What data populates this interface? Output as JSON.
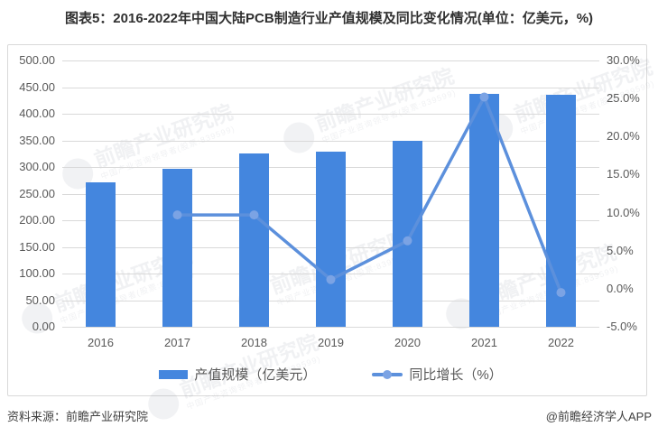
{
  "title": "图表5：2016-2022年中国大陆PCB制造行业产值规模及同比变化情况(单位：亿美元，%)",
  "chart_data": {
    "type": "bar+line",
    "categories": [
      "2016",
      "2017",
      "2018",
      "2019",
      "2020",
      "2021",
      "2022"
    ],
    "series": [
      {
        "name": "产值规模（亿美元）",
        "type": "bar",
        "axis": "left",
        "values": [
          271,
          297,
          326,
          329,
          350,
          437,
          435
        ]
      },
      {
        "name": "同比增长（%）",
        "type": "line",
        "axis": "right",
        "values": [
          null,
          9.7,
          9.7,
          1.2,
          6.3,
          25.2,
          -0.5
        ]
      }
    ],
    "left_axis": {
      "min": 0,
      "max": 500,
      "step": 50,
      "labels": [
        "0.00",
        "50.00",
        "100.00",
        "150.00",
        "200.00",
        "250.00",
        "300.00",
        "350.00",
        "400.00",
        "450.00",
        "500.00"
      ]
    },
    "right_axis": {
      "min": -5,
      "max": 30,
      "step": 5,
      "labels": [
        "-5.0%",
        "0.0%",
        "5.0%",
        "10.0%",
        "15.0%",
        "20.0%",
        "25.0%",
        "30.0%"
      ]
    },
    "grid": true,
    "legend_position": "bottom"
  },
  "footer": {
    "source": "资料来源：前瞻产业研究院",
    "credit": "@前瞻经济学人APP"
  },
  "watermark": {
    "text": "前瞻产业研究院",
    "subtext": "中国产业咨询领导者(股票:839599)"
  },
  "colors": {
    "bar": "#4486DE",
    "line": "#5C90DC",
    "marker": "#7BA3E4",
    "grid": "#D9D9D9",
    "axis_text": "#595959",
    "title": "#303030",
    "footer_text": "#404040",
    "panel_border": "#D9D9D9",
    "panel_bg": "#FFFFFF"
  }
}
